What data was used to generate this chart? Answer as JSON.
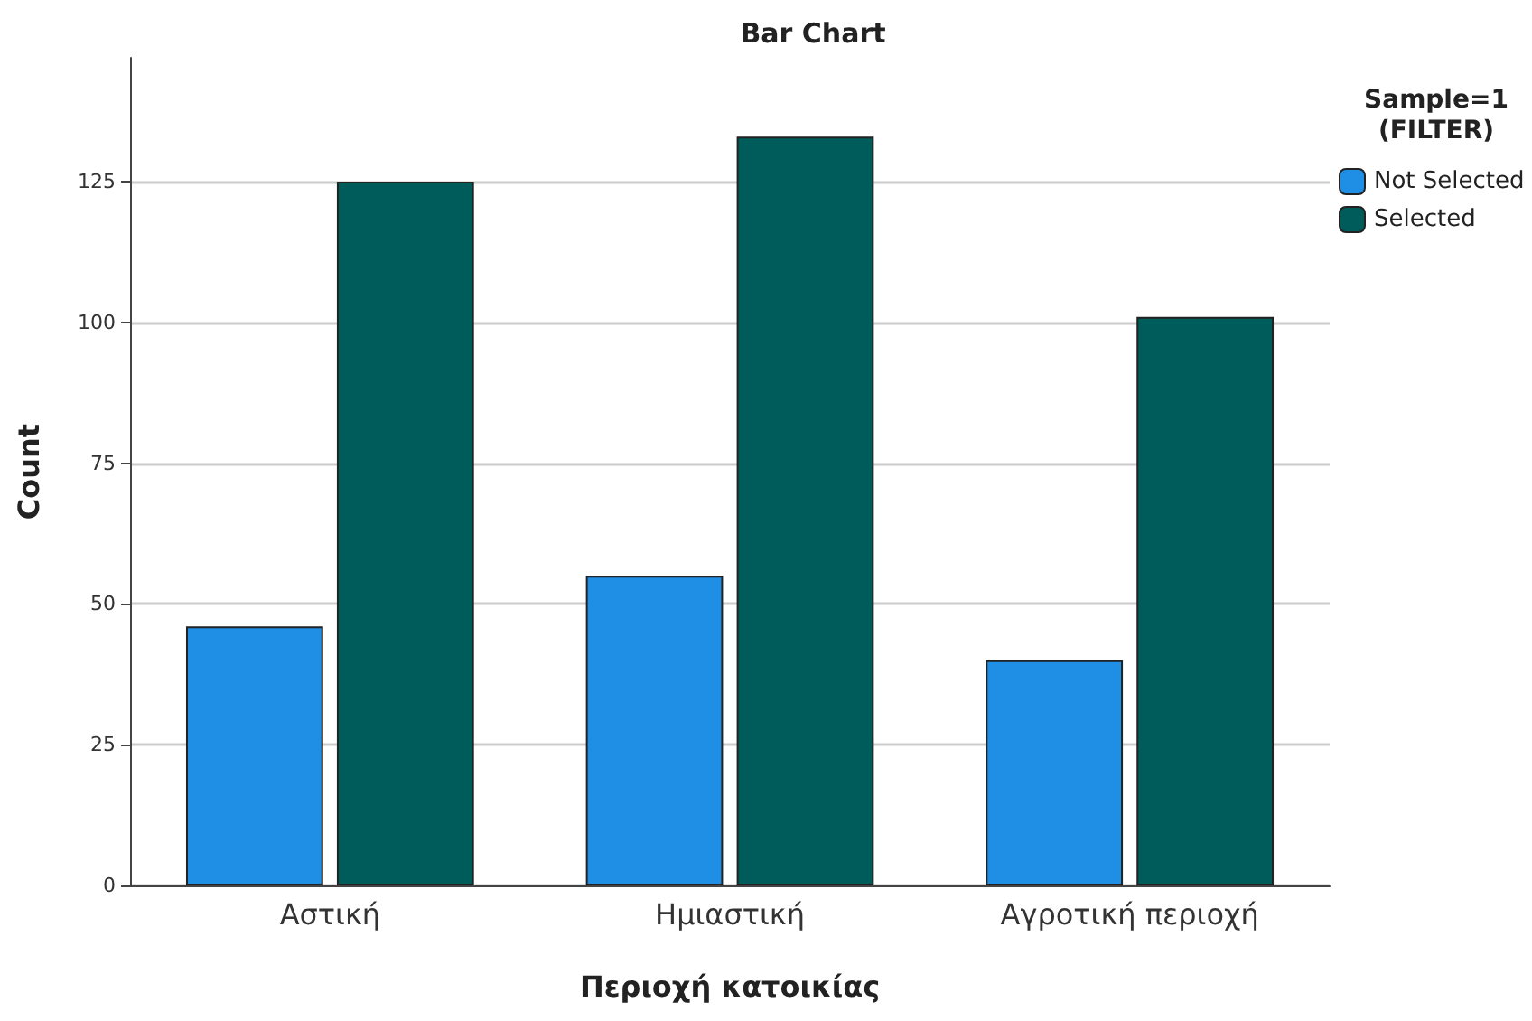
{
  "chart_data": {
    "type": "bar",
    "title": "Bar Chart",
    "xlabel": "Περιοχή κατοικίας",
    "ylabel": "Count",
    "legend_title": "Sample=1\n(FILTER)",
    "categories": [
      "Αστική",
      "Ημιαστική",
      "Αγροτική περιοχή"
    ],
    "series": [
      {
        "name": "Not Selected",
        "color": "#1f8fe6",
        "values": [
          46,
          55,
          40
        ]
      },
      {
        "name": "Selected",
        "color": "#005b5b",
        "values": [
          125,
          133,
          101
        ]
      }
    ],
    "ylim": [
      0,
      147
    ],
    "yticks": [
      0,
      25,
      50,
      75,
      100,
      125
    ],
    "grid": "y",
    "legend": "top right"
  }
}
